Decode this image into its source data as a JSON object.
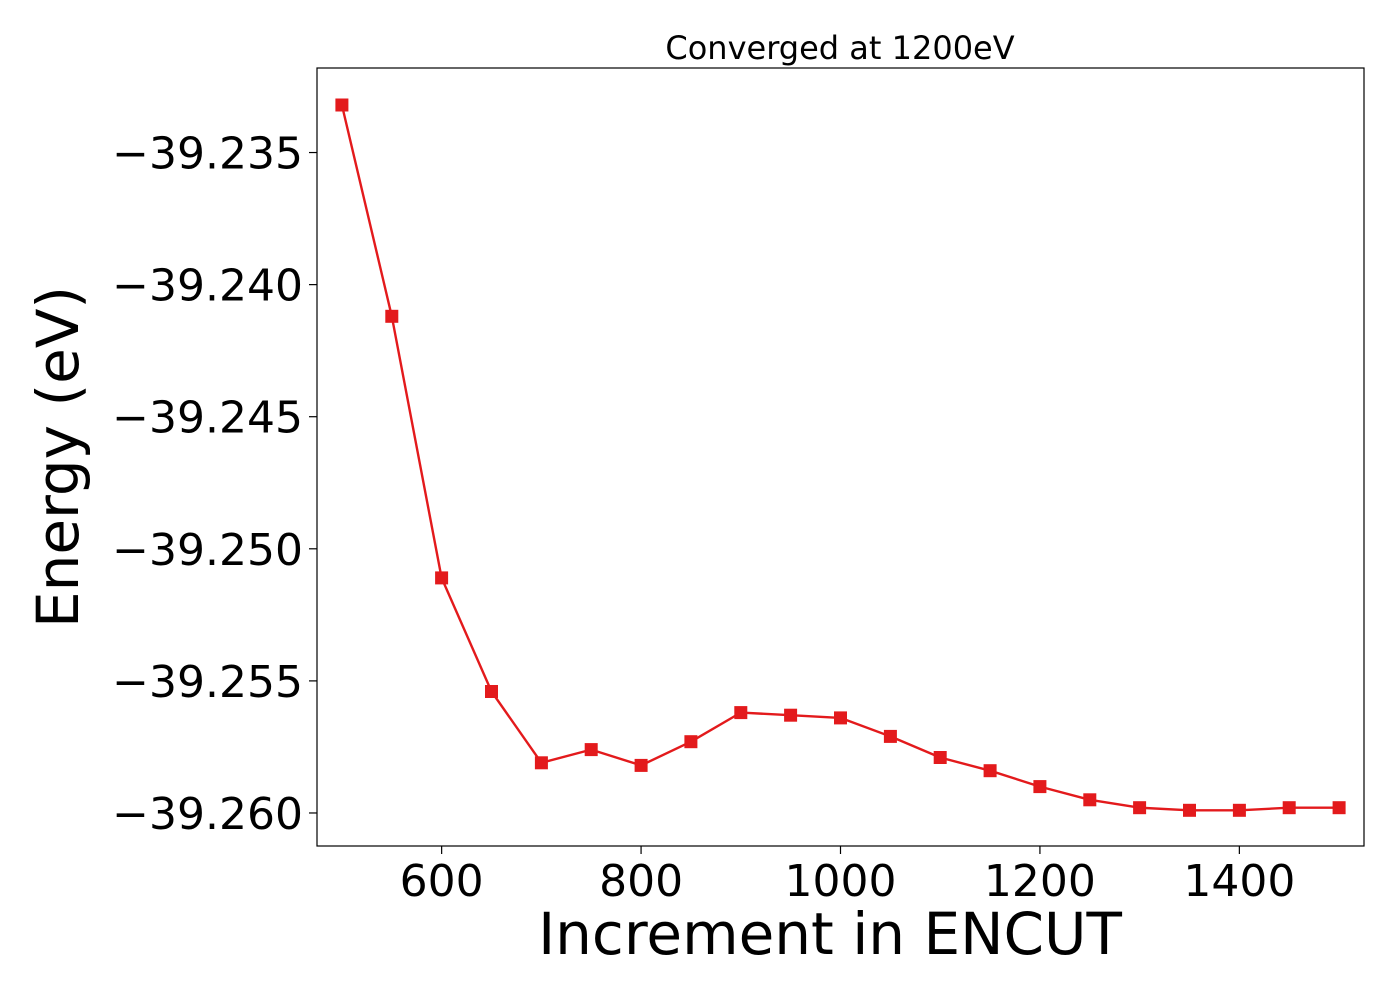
{
  "chart_data": {
    "type": "line",
    "title": "Converged at 1200eV",
    "xlabel": "Increment in ENCUT",
    "ylabel": "Energy (eV)",
    "xlim": [
      475,
      1525
    ],
    "ylim": [
      -39.26125,
      -39.2318
    ],
    "xticks": [
      600,
      800,
      1000,
      1200,
      1400
    ],
    "xtick_labels": [
      "600",
      "800",
      "1000",
      "1200",
      "1400"
    ],
    "yticks": [
      -39.235,
      -39.24,
      -39.245,
      -39.25,
      -39.255,
      -39.26
    ],
    "ytick_labels": [
      "−39.235",
      "−39.240",
      "−39.245",
      "−39.250",
      "−39.255",
      "−39.260"
    ],
    "grid": false,
    "legend": null,
    "series": [
      {
        "color": "#e31a1c",
        "marker": "square",
        "x": [
          500,
          550,
          600,
          650,
          700,
          750,
          800,
          850,
          900,
          950,
          1000,
          1050,
          1100,
          1150,
          1200,
          1250,
          1300,
          1350,
          1400,
          1450,
          1500
        ],
        "y": [
          -39.2332,
          -39.2412,
          -39.2511,
          -39.2554,
          -39.2581,
          -39.2576,
          -39.2582,
          -39.2573,
          -39.2562,
          -39.2563,
          -39.2564,
          -39.2571,
          -39.2579,
          -39.2584,
          -39.259,
          -39.2595,
          -39.2598,
          -39.2599,
          -39.2599,
          -39.2598,
          -39.2598
        ]
      }
    ]
  }
}
